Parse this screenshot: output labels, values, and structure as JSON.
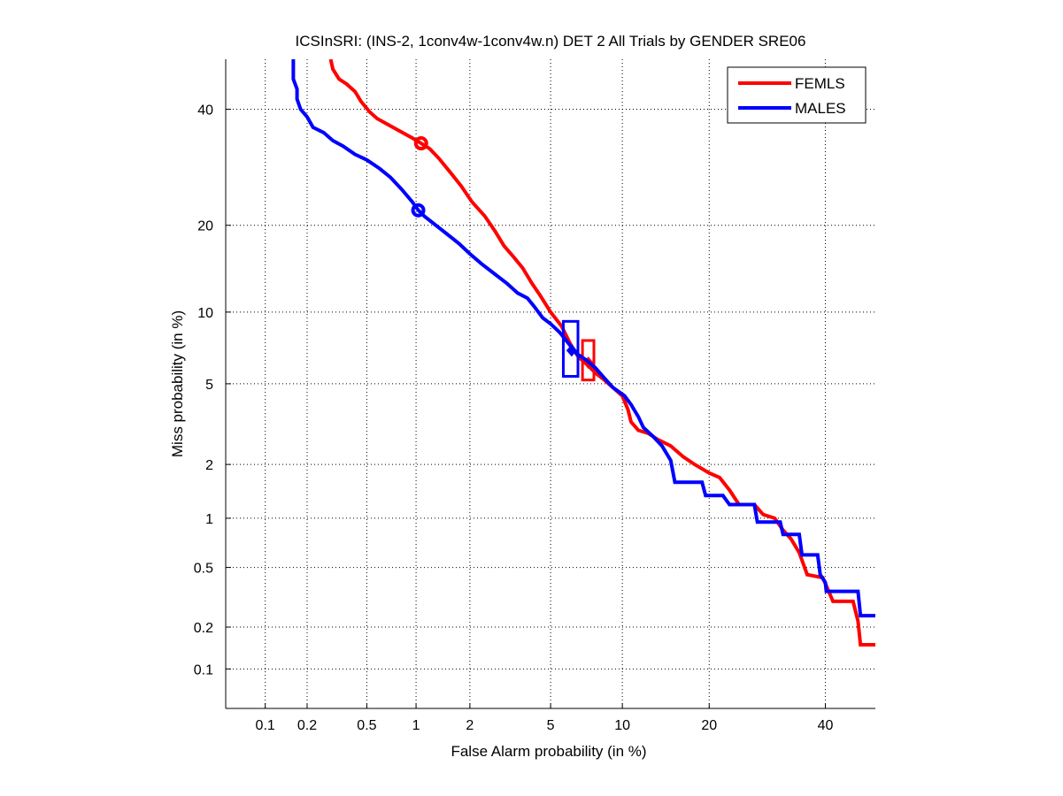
{
  "chart_data": {
    "type": "line",
    "title": "ICSInSRI: (INS-2, 1conv4w-1conv4w.n) DET 2 All Trials by GENDER SRE06",
    "xlabel": "False Alarm probability (in %)",
    "ylabel": "Miss probability (in %)",
    "scale": "normal-deviate",
    "xlim": [
      0.05,
      50
    ],
    "ylim": [
      0.05,
      50
    ],
    "xticks": [
      0.1,
      0.2,
      0.5,
      1,
      2,
      5,
      10,
      20,
      40
    ],
    "xtick_labels": [
      "0.1",
      "0.2",
      "0.5",
      "1",
      "2",
      "5",
      "10",
      "20",
      "40"
    ],
    "yticks": [
      0.1,
      0.2,
      0.5,
      1,
      2,
      5,
      10,
      20,
      40
    ],
    "ytick_labels": [
      "0.1",
      "0.2",
      "0.5",
      "1",
      "2",
      "5",
      "10",
      "20",
      "40"
    ],
    "grid": true,
    "legend_position": "top-right",
    "series": [
      {
        "name": "FEMLS",
        "color": "#ff0000",
        "points": [
          [
            0.29,
            50
          ],
          [
            0.3,
            48
          ],
          [
            0.33,
            46
          ],
          [
            0.37,
            45
          ],
          [
            0.42,
            43.5
          ],
          [
            0.46,
            41.5
          ],
          [
            0.52,
            39.5
          ],
          [
            0.58,
            38.2
          ],
          [
            0.68,
            37
          ],
          [
            0.8,
            35.8
          ],
          [
            0.95,
            34.5
          ],
          [
            1.07,
            33.5
          ],
          [
            1.2,
            32.5
          ],
          [
            1.35,
            30.8
          ],
          [
            1.55,
            28.5
          ],
          [
            1.8,
            26
          ],
          [
            2.05,
            23.5
          ],
          [
            2.4,
            21.3
          ],
          [
            2.7,
            19.2
          ],
          [
            3.0,
            17.2
          ],
          [
            3.35,
            15.8
          ],
          [
            3.7,
            14.5
          ],
          [
            4.1,
            12.8
          ],
          [
            4.5,
            11.5
          ],
          [
            5.0,
            10.0
          ],
          [
            5.6,
            8.8
          ],
          [
            6.1,
            7.5
          ],
          [
            6.6,
            6.6
          ],
          [
            7.2,
            6.1
          ],
          [
            7.8,
            5.6
          ],
          [
            8.5,
            5.2
          ],
          [
            9.2,
            4.8
          ],
          [
            10.0,
            4.4
          ],
          [
            10.5,
            3.8
          ],
          [
            10.8,
            3.3
          ],
          [
            11.5,
            3.0
          ],
          [
            12.5,
            2.9
          ],
          [
            13.5,
            2.7
          ],
          [
            15,
            2.5
          ],
          [
            16.5,
            2.2
          ],
          [
            18,
            2.0
          ],
          [
            20,
            1.8
          ],
          [
            21.5,
            1.7
          ],
          [
            23,
            1.45
          ],
          [
            24.5,
            1.2
          ],
          [
            27,
            1.2
          ],
          [
            28.5,
            1.05
          ],
          [
            30.5,
            1.0
          ],
          [
            32,
            0.85
          ],
          [
            33.5,
            0.75
          ],
          [
            35,
            0.62
          ],
          [
            36.5,
            0.45
          ],
          [
            39.5,
            0.43
          ],
          [
            40.5,
            0.36
          ],
          [
            41.5,
            0.3
          ],
          [
            45.5,
            0.3
          ],
          [
            46.5,
            0.22
          ],
          [
            47,
            0.15
          ],
          [
            50,
            0.15
          ]
        ],
        "min_dcf_point": [
          1.07,
          33.5
        ],
        "actual_dcf_point": [
          7.3,
          6.2
        ],
        "confidence_box": {
          "fa": [
            6.9,
            7.7
          ],
          "miss": [
            5.2,
            7.7
          ]
        }
      },
      {
        "name": "MALES",
        "color": "#0000ff",
        "points": [
          [
            0.16,
            50
          ],
          [
            0.16,
            46
          ],
          [
            0.17,
            44
          ],
          [
            0.17,
            42
          ],
          [
            0.18,
            40
          ],
          [
            0.2,
            38.5
          ],
          [
            0.22,
            36.5
          ],
          [
            0.26,
            35.5
          ],
          [
            0.3,
            34
          ],
          [
            0.35,
            33
          ],
          [
            0.42,
            31.5
          ],
          [
            0.5,
            30.5
          ],
          [
            0.6,
            29
          ],
          [
            0.7,
            27.5
          ],
          [
            0.82,
            25.5
          ],
          [
            0.95,
            23.5
          ],
          [
            1.03,
            22.2
          ],
          [
            1.12,
            21.3
          ],
          [
            1.3,
            20
          ],
          [
            1.5,
            18.8
          ],
          [
            1.75,
            17.5
          ],
          [
            2.0,
            16.2
          ],
          [
            2.3,
            15
          ],
          [
            2.7,
            13.8
          ],
          [
            3.1,
            12.8
          ],
          [
            3.5,
            11.8
          ],
          [
            3.9,
            11.3
          ],
          [
            4.2,
            10.5
          ],
          [
            4.6,
            9.5
          ],
          [
            5.0,
            9.0
          ],
          [
            5.5,
            8.3
          ],
          [
            6.0,
            7.5
          ],
          [
            6.5,
            6.8
          ],
          [
            7.1,
            6.4
          ],
          [
            7.8,
            5.9
          ],
          [
            8.5,
            5.3
          ],
          [
            9.2,
            4.8
          ],
          [
            10.2,
            4.4
          ],
          [
            10.8,
            4.0
          ],
          [
            11.5,
            3.5
          ],
          [
            12,
            3.1
          ],
          [
            13,
            2.8
          ],
          [
            14,
            2.5
          ],
          [
            15,
            2.1
          ],
          [
            15.5,
            1.6
          ],
          [
            19,
            1.6
          ],
          [
            19.5,
            1.35
          ],
          [
            22,
            1.35
          ],
          [
            23,
            1.2
          ],
          [
            27,
            1.2
          ],
          [
            27.5,
            0.95
          ],
          [
            31.5,
            0.95
          ],
          [
            32,
            0.8
          ],
          [
            35,
            0.8
          ],
          [
            35.5,
            0.6
          ],
          [
            38.5,
            0.6
          ],
          [
            39,
            0.45
          ],
          [
            40,
            0.4
          ],
          [
            40.2,
            0.35
          ],
          [
            46.5,
            0.35
          ],
          [
            47,
            0.24
          ],
          [
            50,
            0.24
          ]
        ],
        "min_dcf_point": [
          1.03,
          22.2
        ],
        "actual_dcf_point": [
          6.2,
          7.0
        ],
        "confidence_box": {
          "fa": [
            5.7,
            6.6
          ],
          "miss": [
            5.4,
            9.2
          ]
        }
      }
    ]
  }
}
